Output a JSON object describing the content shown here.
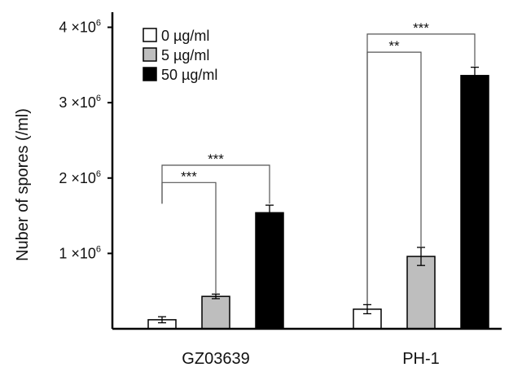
{
  "chart_data": {
    "type": "bar",
    "ylabel": "Nuber of spores (/ml)",
    "categories": [
      "GZ03639",
      "PH-1"
    ],
    "ylim": [
      0,
      4200000
    ],
    "yticks": [
      {
        "value": 1000000,
        "base": "1 ×10",
        "exp": "6"
      },
      {
        "value": 2000000,
        "base": "2 ×10",
        "exp": "6"
      },
      {
        "value": 3000000,
        "base": "3 ×10",
        "exp": "6"
      },
      {
        "value": 4000000,
        "base": "4 ×10",
        "exp": "6"
      }
    ],
    "series": [
      {
        "name": "0 µg/ml",
        "color": "#ffffff",
        "values": [
          120000,
          260000
        ],
        "errors": [
          40000,
          60000
        ]
      },
      {
        "name": "5 µg/ml",
        "color": "#bebebe",
        "values": [
          430000,
          960000
        ],
        "errors": [
          30000,
          120000
        ]
      },
      {
        "name": "50 µg/ml",
        "color": "#000000",
        "values": [
          1540000,
          3360000
        ],
        "errors": [
          100000,
          110000
        ]
      }
    ],
    "significance": [
      {
        "category": 0,
        "from": 0,
        "to": 1,
        "label": "***",
        "line_y": 1940000,
        "drop_to": [
          1660000,
          470000
        ]
      },
      {
        "category": 0,
        "from": 0,
        "to": 2,
        "label": "***",
        "line_y": 2170000,
        "drop_to": [
          1660000,
          1660000
        ]
      },
      {
        "category": 1,
        "from": 0,
        "to": 1,
        "label": "**",
        "line_y": 3670000,
        "drop_to": [
          320000,
          1090000
        ]
      },
      {
        "category": 1,
        "from": 0,
        "to": 2,
        "label": "***",
        "line_y": 3910000,
        "drop_to": [
          320000,
          3480000
        ]
      }
    ],
    "legend_position": "top-left",
    "grid": false
  }
}
